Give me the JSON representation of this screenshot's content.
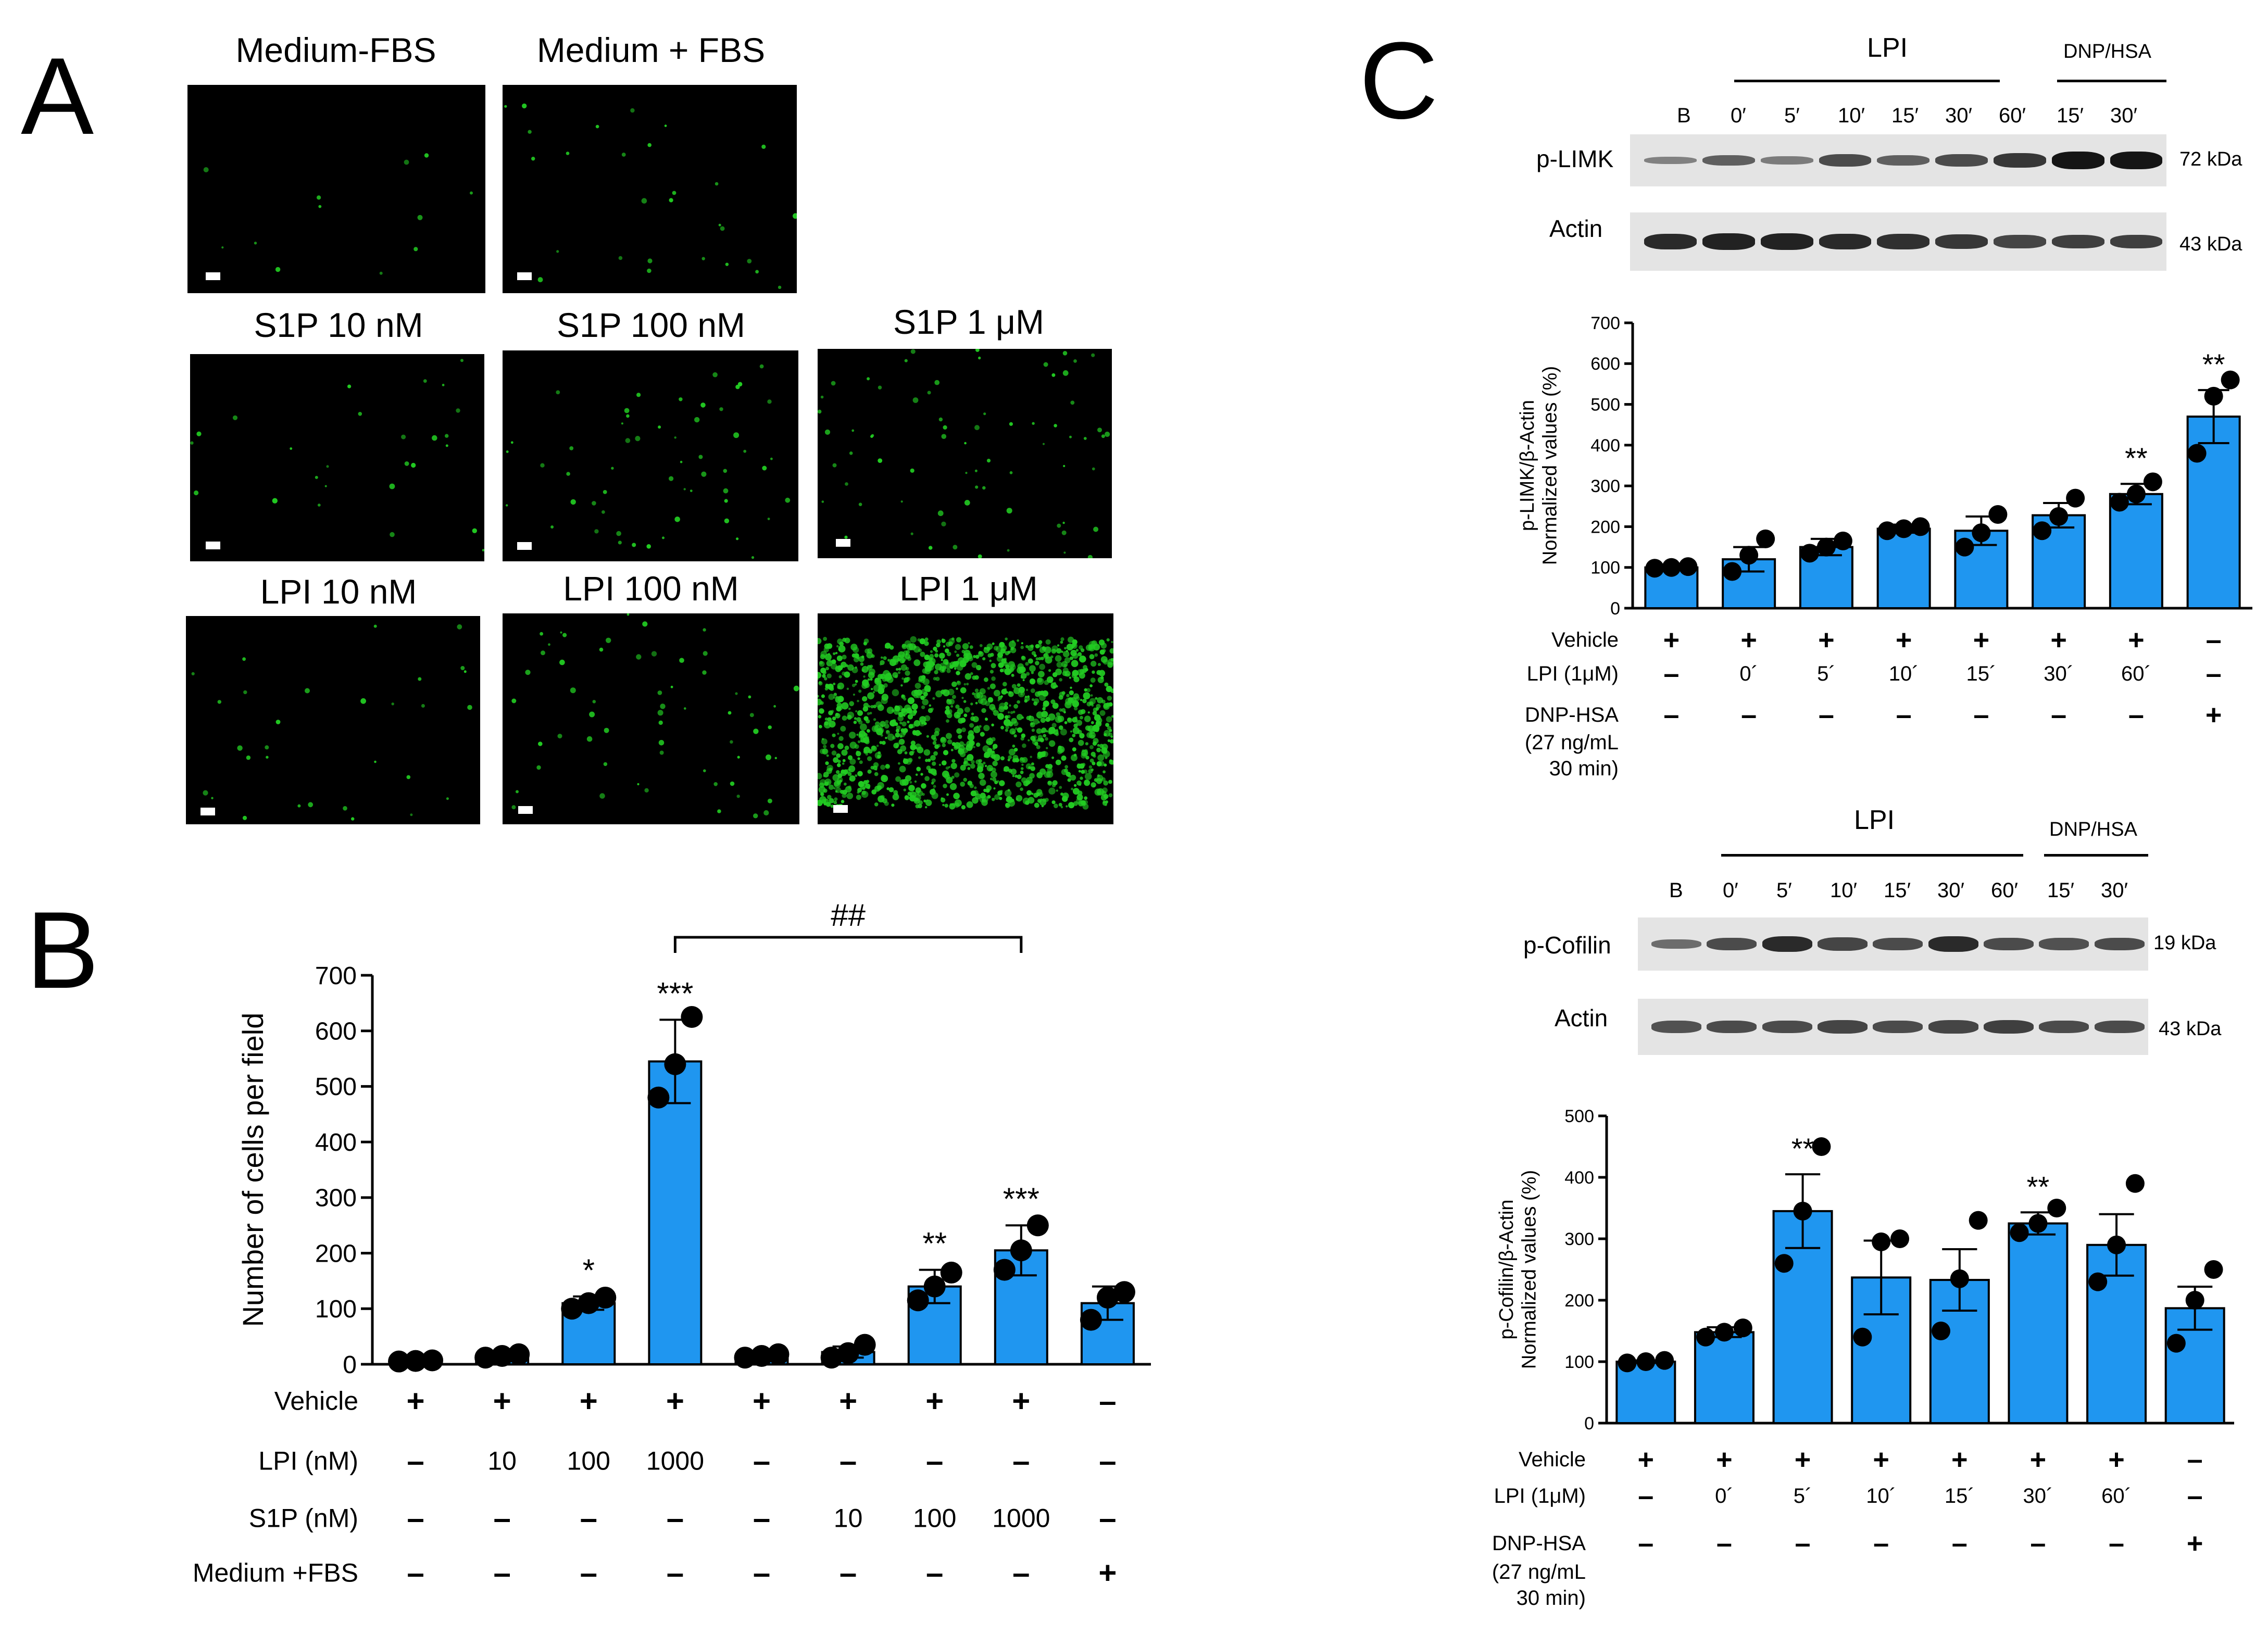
{
  "panel_labels": {
    "A": "A",
    "B": "B",
    "C": "C"
  },
  "panel_a": {
    "image_titles": [
      "Medium-FBS",
      "Medium + FBS",
      "S1P  10 nM",
      "S1P  100 nM",
      "S1P  1 μM",
      "LPI  10 nM",
      "LPI  100 nM",
      "LPI  1 μM"
    ],
    "background_color": "#000000",
    "spot_color": "#22cc22"
  },
  "colors": {
    "bar": "#1f96f0",
    "axis": "#000000"
  },
  "chart_data": [
    {
      "type": "bar",
      "panel": "B",
      "ylabel": "Number of cells per field",
      "ylim": [
        0,
        700
      ],
      "yticks": [
        0,
        100,
        200,
        300,
        400,
        500,
        600,
        700
      ],
      "values": [
        6,
        15,
        110,
        545,
        15,
        22,
        140,
        205,
        110
      ],
      "errors": [
        2,
        3,
        12,
        75,
        4,
        10,
        30,
        45,
        30
      ],
      "points": [
        [
          5,
          6,
          7
        ],
        [
          12,
          15,
          18
        ],
        [
          100,
          110,
          120
        ],
        [
          480,
          540,
          625
        ],
        [
          12,
          15,
          18
        ],
        [
          12,
          20,
          35
        ],
        [
          115,
          140,
          165
        ],
        [
          170,
          205,
          250
        ],
        [
          80,
          120,
          130
        ]
      ],
      "significance": [
        "",
        "",
        "*",
        "***",
        "",
        "",
        "**",
        "***",
        ""
      ],
      "bracket": {
        "from": 3,
        "to": 7,
        "label": "##"
      },
      "condition_rows": [
        {
          "label": "Vehicle",
          "values": [
            "+",
            "+",
            "+",
            "+",
            "+",
            "+",
            "+",
            "+",
            "–"
          ]
        },
        {
          "label": "LPI (nM)",
          "values": [
            "–",
            "10",
            "100",
            "1000",
            "–",
            "–",
            "–",
            "–",
            "–"
          ]
        },
        {
          "label": "S1P (nM)",
          "values": [
            "–",
            "–",
            "–",
            "–",
            "–",
            "10",
            "100",
            "1000",
            "–"
          ]
        },
        {
          "label": "Medium +FBS",
          "values": [
            "–",
            "–",
            "–",
            "–",
            "–",
            "–",
            "–",
            "–",
            "+"
          ]
        }
      ]
    },
    {
      "type": "bar",
      "panel": "C-top",
      "ylabel_lines": [
        "p-LIMK/β-Actin",
        "Normalized values (%)"
      ],
      "ylim": [
        0,
        700
      ],
      "yticks": [
        0,
        100,
        200,
        300,
        400,
        500,
        600,
        700
      ],
      "values": [
        100,
        120,
        150,
        195,
        190,
        228,
        280,
        470
      ],
      "errors": [
        3,
        30,
        20,
        10,
        35,
        30,
        25,
        65
      ],
      "points": [
        [
          98,
          100,
          102
        ],
        [
          90,
          130,
          170
        ],
        [
          135,
          150,
          165
        ],
        [
          190,
          195,
          200
        ],
        [
          150,
          185,
          230
        ],
        [
          190,
          225,
          270
        ],
        [
          260,
          280,
          310
        ],
        [
          380,
          520,
          560
        ]
      ],
      "significance": [
        "",
        "",
        "",
        "",
        "",
        "",
        "**",
        "**"
      ],
      "condition_rows": [
        {
          "label": "Vehicle",
          "values": [
            "+",
            "+",
            "+",
            "+",
            "+",
            "+",
            "+",
            "–"
          ]
        },
        {
          "label": "LPI (1μM)",
          "values": [
            "–",
            "0´",
            "5´",
            "10´",
            "15´",
            "30´",
            "60´",
            "–"
          ]
        },
        {
          "label": "DNP-HSA",
          "values": [
            "–",
            "–",
            "–",
            "–",
            "–",
            "–",
            "–",
            "+"
          ]
        }
      ],
      "condition_label_extra": [
        "(27 ng/mL",
        "30 min)"
      ]
    },
    {
      "type": "bar",
      "panel": "C-bottom",
      "ylabel_lines": [
        "p-Cofilin/β-Actin",
        "Normalized values (%)"
      ],
      "ylim": [
        0,
        500
      ],
      "yticks": [
        0,
        100,
        200,
        300,
        400,
        500
      ],
      "values": [
        100,
        148,
        345,
        237,
        233,
        325,
        290,
        187
      ],
      "errors": [
        2,
        8,
        60,
        60,
        50,
        18,
        50,
        35
      ],
      "points": [
        [
          98,
          100,
          102
        ],
        [
          140,
          148,
          155
        ],
        [
          260,
          345,
          450
        ],
        [
          140,
          295,
          300
        ],
        [
          150,
          235,
          330
        ],
        [
          310,
          325,
          350
        ],
        [
          230,
          290,
          390
        ],
        [
          130,
          200,
          250
        ]
      ],
      "significance": [
        "",
        "",
        "**",
        "",
        "",
        "**",
        "",
        ""
      ],
      "condition_rows": [
        {
          "label": "Vehicle",
          "values": [
            "+",
            "+",
            "+",
            "+",
            "+",
            "+",
            "+",
            "–"
          ]
        },
        {
          "label": "LPI (1μM)",
          "values": [
            "–",
            "0´",
            "5´",
            "10´",
            "15´",
            "30´",
            "60´",
            "–"
          ]
        },
        {
          "label": "DNP-HSA",
          "values": [
            "–",
            "–",
            "–",
            "–",
            "–",
            "–",
            "–",
            "+"
          ]
        }
      ],
      "condition_label_extra": [
        "(27 ng/mL",
        "30 min)"
      ]
    }
  ],
  "blot_top": {
    "group_lpi": "LPI",
    "group_dnp": "DNP/HSA",
    "lanes": [
      "B",
      "0′",
      "5′",
      "10′",
      "15′",
      "30′",
      "60′",
      "15′",
      "30′"
    ],
    "row1_label": "p-LIMK",
    "row1_kda": "72 kDa",
    "row2_label": "Actin",
    "row2_kda": "43 kDa"
  },
  "blot_bottom": {
    "group_lpi": "LPI",
    "group_dnp": "DNP/HSA",
    "lanes": [
      "B",
      "0′",
      "5′",
      "10′",
      "15′",
      "30′",
      "60′",
      "15′",
      "30′"
    ],
    "row1_label": "p-Cofilin",
    "row1_kda": "19 kDa",
    "row2_label": "Actin",
    "row2_kda": "43 kDa"
  }
}
